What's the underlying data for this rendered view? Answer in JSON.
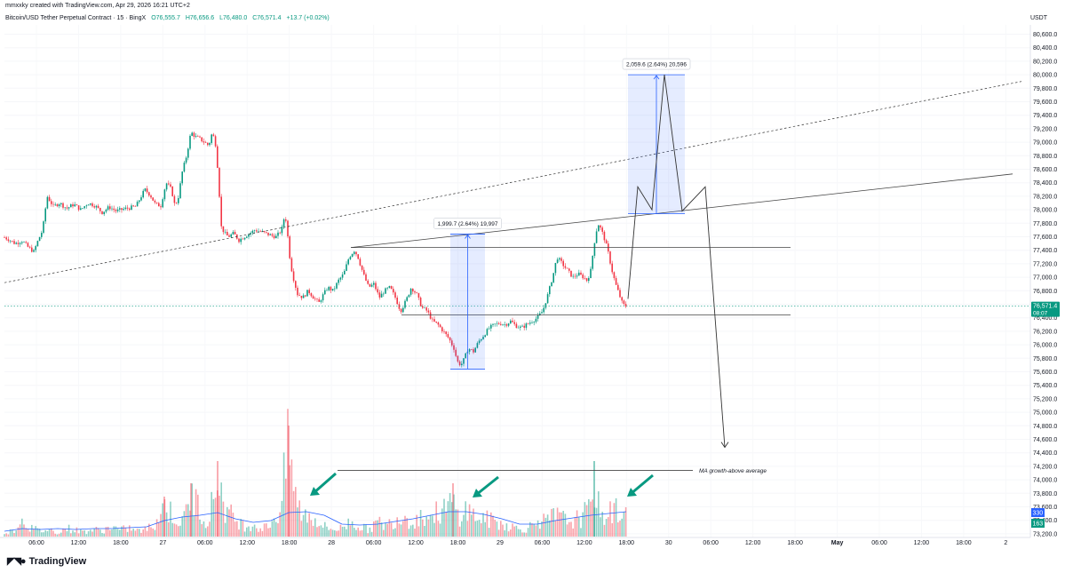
{
  "header": {
    "created": "mmxxky created with TradingView.com, Apr 29, 2026 16:21 UTC+2",
    "symbol": "Bitcoin/USD Tether Perpetual Contract · 15 · BingX",
    "open": "O76,555.7",
    "high": "H76,656.6",
    "low": "L76,480.0",
    "close": "C76,571.4",
    "change": "+13.7 (+0.02%)"
  },
  "unit": "USDT",
  "logo": "TradingView",
  "colors": {
    "up": "#089981",
    "down": "#f23645",
    "accent": "#2962ff",
    "axis_text": "#131722"
  },
  "chart_data": {
    "type": "candlestick",
    "y_range": [
      73200,
      80700
    ],
    "y_ticks": [
      80600,
      80400,
      80200,
      80000,
      79800,
      79600,
      79400,
      79200,
      79000,
      78800,
      78600,
      78400,
      78200,
      78000,
      77800,
      77600,
      77400,
      77200,
      77000,
      76800,
      76600,
      76400,
      76200,
      76000,
      75800,
      75600,
      75400,
      75200,
      75000,
      74800,
      74600,
      74400,
      74200,
      74000,
      73800,
      73600,
      73400,
      73200
    ],
    "x_ticks": [
      "06:00",
      "12:00",
      "18:00",
      "27",
      "06:00",
      "12:00",
      "18:00",
      "28",
      "06:00",
      "12:00",
      "18:00",
      "29",
      "06:00",
      "12:00",
      "18:00",
      "30",
      "06:00",
      "12:00",
      "18:00",
      "May",
      "06:00",
      "12:00",
      "18:00",
      "2"
    ],
    "bold_ticks": [
      "May"
    ],
    "current_price": {
      "value": 76571.4,
      "label": "76,571.4",
      "countdown": "08:07"
    },
    "volume_labels": {
      "ma": "330",
      "vol": "163"
    },
    "price_path": [
      [
        0,
        77590
      ],
      [
        5,
        77560
      ],
      [
        12,
        77500
      ],
      [
        20,
        77540
      ],
      [
        27,
        77440
      ],
      [
        33,
        77380
      ],
      [
        38,
        77550
      ],
      [
        43,
        77700
      ],
      [
        48,
        78200
      ],
      [
        55,
        78050
      ],
      [
        62,
        78100
      ],
      [
        70,
        78020
      ],
      [
        78,
        78080
      ],
      [
        86,
        78000
      ],
      [
        94,
        78100
      ],
      [
        102,
        78060
      ],
      [
        110,
        77960
      ],
      [
        118,
        78040
      ],
      [
        126,
        77980
      ],
      [
        134,
        78010
      ],
      [
        142,
        78030
      ],
      [
        148,
        78050
      ],
      [
        152,
        78150
      ],
      [
        158,
        78300
      ],
      [
        164,
        78220
      ],
      [
        170,
        78080
      ],
      [
        176,
        78060
      ],
      [
        182,
        78400
      ],
      [
        188,
        78300
      ],
      [
        192,
        78050
      ],
      [
        196,
        78200
      ],
      [
        200,
        78550
      ],
      [
        205,
        78800
      ],
      [
        210,
        79150
      ],
      [
        215,
        79080
      ],
      [
        220,
        79050
      ],
      [
        225,
        79000
      ],
      [
        230,
        78950
      ],
      [
        234,
        79150
      ],
      [
        238,
        78950
      ],
      [
        241,
        78450
      ],
      [
        244,
        77750
      ],
      [
        248,
        77650
      ],
      [
        252,
        77600
      ],
      [
        258,
        77650
      ],
      [
        264,
        77550
      ],
      [
        270,
        77600
      ],
      [
        276,
        77650
      ],
      [
        282,
        77700
      ],
      [
        288,
        77680
      ],
      [
        294,
        77650
      ],
      [
        300,
        77620
      ],
      [
        306,
        77600
      ],
      [
        312,
        77700
      ],
      [
        316,
        77950
      ],
      [
        319,
        77600
      ],
      [
        322,
        77200
      ],
      [
        326,
        76950
      ],
      [
        330,
        76750
      ],
      [
        336,
        76700
      ],
      [
        342,
        76800
      ],
      [
        348,
        76700
      ],
      [
        354,
        76620
      ],
      [
        358,
        76720
      ],
      [
        364,
        76850
      ],
      [
        370,
        76800
      ],
      [
        376,
        76950
      ],
      [
        382,
        77050
      ],
      [
        388,
        77300
      ],
      [
        394,
        77400
      ],
      [
        398,
        77300
      ],
      [
        404,
        77050
      ],
      [
        410,
        76850
      ],
      [
        416,
        76900
      ],
      [
        422,
        76700
      ],
      [
        428,
        76800
      ],
      [
        434,
        76850
      ],
      [
        440,
        76700
      ],
      [
        446,
        76500
      ],
      [
        452,
        76650
      ],
      [
        458,
        76850
      ],
      [
        464,
        76750
      ],
      [
        470,
        76550
      ],
      [
        476,
        76500
      ],
      [
        482,
        76350
      ],
      [
        488,
        76300
      ],
      [
        494,
        76200
      ],
      [
        500,
        76100
      ],
      [
        506,
        75950
      ],
      [
        510,
        75750
      ],
      [
        514,
        75700
      ],
      [
        518,
        75800
      ],
      [
        522,
        75950
      ],
      [
        528,
        75900
      ],
      [
        534,
        76050
      ],
      [
        540,
        76150
      ],
      [
        546,
        76250
      ],
      [
        552,
        76300
      ],
      [
        558,
        76320
      ],
      [
        564,
        76300
      ],
      [
        570,
        76350
      ],
      [
        576,
        76280
      ],
      [
        582,
        76250
      ],
      [
        588,
        76300
      ],
      [
        594,
        76350
      ],
      [
        600,
        76400
      ],
      [
        606,
        76500
      ],
      [
        612,
        76750
      ],
      [
        618,
        77050
      ],
      [
        622,
        77300
      ],
      [
        628,
        77200
      ],
      [
        634,
        77100
      ],
      [
        640,
        77000
      ],
      [
        646,
        77050
      ],
      [
        652,
        77000
      ],
      [
        656,
        76950
      ],
      [
        660,
        77100
      ],
      [
        664,
        77500
      ],
      [
        668,
        77800
      ],
      [
        672,
        77700
      ],
      [
        676,
        77550
      ],
      [
        680,
        77350
      ],
      [
        684,
        77100
      ],
      [
        688,
        76900
      ],
      [
        692,
        76750
      ],
      [
        696,
        76600
      ],
      [
        700,
        76571
      ]
    ],
    "volume_path": [
      [
        0,
        6
      ],
      [
        10,
        8
      ],
      [
        20,
        25
      ],
      [
        30,
        12
      ],
      [
        40,
        8
      ],
      [
        50,
        10
      ],
      [
        60,
        6
      ],
      [
        70,
        12
      ],
      [
        80,
        9
      ],
      [
        90,
        7
      ],
      [
        100,
        10
      ],
      [
        110,
        8
      ],
      [
        120,
        14
      ],
      [
        130,
        9
      ],
      [
        140,
        12
      ],
      [
        150,
        8
      ],
      [
        160,
        10
      ],
      [
        170,
        20
      ],
      [
        180,
        45
      ],
      [
        190,
        30
      ],
      [
        200,
        18
      ],
      [
        210,
        60
      ],
      [
        220,
        38
      ],
      [
        230,
        22
      ],
      [
        240,
        85
      ],
      [
        250,
        35
      ],
      [
        260,
        25
      ],
      [
        270,
        15
      ],
      [
        280,
        18
      ],
      [
        290,
        10
      ],
      [
        300,
        20
      ],
      [
        310,
        35
      ],
      [
        320,
        125
      ],
      [
        330,
        40
      ],
      [
        340,
        30
      ],
      [
        350,
        25
      ],
      [
        360,
        14
      ],
      [
        370,
        10
      ],
      [
        380,
        12
      ],
      [
        390,
        22
      ],
      [
        400,
        14
      ],
      [
        410,
        10
      ],
      [
        420,
        20
      ],
      [
        430,
        15
      ],
      [
        440,
        25
      ],
      [
        450,
        30
      ],
      [
        460,
        20
      ],
      [
        470,
        30
      ],
      [
        480,
        28
      ],
      [
        490,
        35
      ],
      [
        500,
        40
      ],
      [
        505,
        50
      ],
      [
        510,
        30
      ],
      [
        520,
        38
      ],
      [
        530,
        28
      ],
      [
        540,
        25
      ],
      [
        550,
        22
      ],
      [
        560,
        18
      ],
      [
        570,
        15
      ],
      [
        580,
        10
      ],
      [
        590,
        12
      ],
      [
        600,
        25
      ],
      [
        610,
        20
      ],
      [
        620,
        30
      ],
      [
        630,
        24
      ],
      [
        640,
        22
      ],
      [
        650,
        28
      ],
      [
        660,
        38
      ],
      [
        664,
        85
      ],
      [
        670,
        30
      ],
      [
        680,
        32
      ],
      [
        690,
        38
      ],
      [
        700,
        28
      ]
    ],
    "volume_ma_path": [
      [
        0,
        6
      ],
      [
        20,
        9
      ],
      [
        40,
        8
      ],
      [
        60,
        9
      ],
      [
        80,
        8
      ],
      [
        100,
        9
      ],
      [
        120,
        9
      ],
      [
        140,
        10
      ],
      [
        160,
        11
      ],
      [
        180,
        18
      ],
      [
        200,
        22
      ],
      [
        220,
        24
      ],
      [
        240,
        27
      ],
      [
        260,
        20
      ],
      [
        280,
        16
      ],
      [
        300,
        18
      ],
      [
        320,
        27
      ],
      [
        340,
        28
      ],
      [
        360,
        24
      ],
      [
        380,
        14
      ],
      [
        400,
        13
      ],
      [
        420,
        14
      ],
      [
        440,
        17
      ],
      [
        460,
        20
      ],
      [
        480,
        24
      ],
      [
        500,
        28
      ],
      [
        520,
        28
      ],
      [
        540,
        25
      ],
      [
        560,
        20
      ],
      [
        580,
        14
      ],
      [
        600,
        14
      ],
      [
        620,
        18
      ],
      [
        640,
        21
      ],
      [
        660,
        24
      ],
      [
        680,
        26
      ],
      [
        700,
        28
      ]
    ],
    "measures": [
      {
        "label": "1,999.7 (2.64%) 19,997",
        "from": 75640,
        "to": 77640
      },
      {
        "label": "2,059.6 (2.64%) 20,596",
        "from": 77940,
        "to": 80000
      }
    ],
    "annotation": "MA growth-above average"
  }
}
